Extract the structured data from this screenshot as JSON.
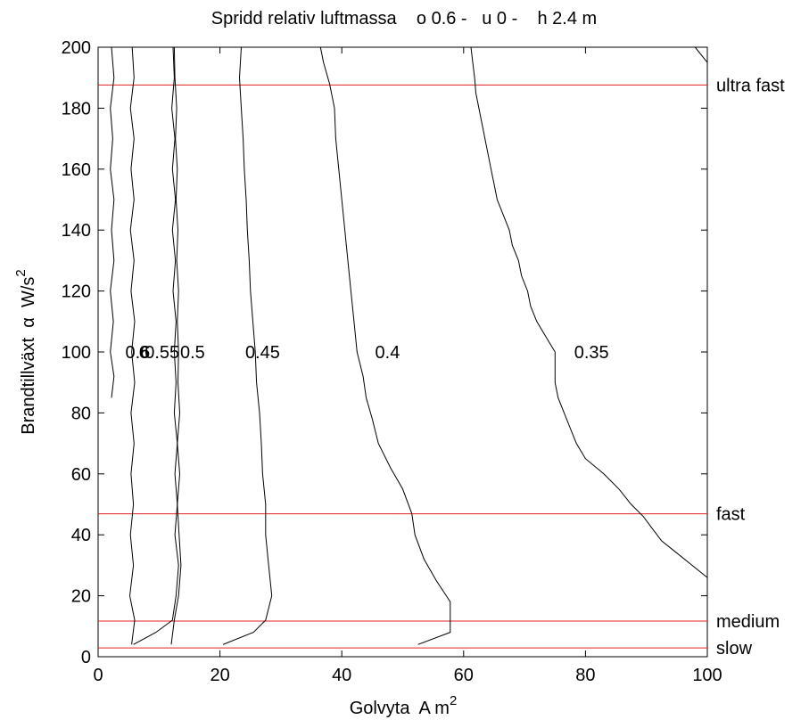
{
  "chart_data": {
    "type": "line",
    "title": "Spridd relativ luftmassa    o 0.6 -   u 0 -    h 2.4 m",
    "xlabel": {
      "text": "Golvyta  A m",
      "sup": "2"
    },
    "ylabel": {
      "text": "Brandtillväxt  α  W/s",
      "sup": "2"
    },
    "xlim": [
      0,
      100
    ],
    "ylim": [
      0,
      200
    ],
    "xticks": [
      0,
      20,
      40,
      60,
      80,
      100
    ],
    "yticks": [
      0,
      20,
      40,
      60,
      80,
      100,
      120,
      140,
      160,
      180,
      200
    ],
    "grid": false,
    "contours": [
      {
        "name": "0.6",
        "label_at": [
          6.5,
          100
        ],
        "points": [
          [
            2.2,
            200
          ],
          [
            2.6,
            190
          ],
          [
            2.0,
            180
          ],
          [
            2.4,
            170
          ],
          [
            2.0,
            160
          ],
          [
            2.6,
            150
          ],
          [
            2.2,
            140
          ],
          [
            2.6,
            130
          ],
          [
            2.0,
            120
          ],
          [
            2.5,
            110
          ],
          [
            2.0,
            100
          ],
          [
            2.6,
            92
          ],
          [
            2.2,
            85
          ]
        ]
      },
      {
        "name": "6",
        "label_at": [
          7.5,
          100
        ],
        "points": [
          [
            5.5,
            4
          ],
          [
            6.0,
            12
          ],
          [
            5.2,
            20
          ],
          [
            5.8,
            30
          ],
          [
            5.3,
            40
          ],
          [
            5.8,
            50
          ],
          [
            5.4,
            60
          ],
          [
            5.9,
            70
          ],
          [
            5.4,
            80
          ],
          [
            6.0,
            90
          ],
          [
            5.5,
            100
          ],
          [
            6.0,
            110
          ],
          [
            5.4,
            120
          ],
          [
            5.9,
            130
          ],
          [
            5.3,
            140
          ],
          [
            5.9,
            150
          ],
          [
            5.4,
            160
          ],
          [
            5.9,
            170
          ],
          [
            5.3,
            180
          ],
          [
            5.9,
            190
          ],
          [
            5.6,
            200
          ]
        ]
      },
      {
        "name": "0.55",
        "label_at": [
          10.5,
          100
        ],
        "points": [
          [
            5.8,
            4
          ],
          [
            9.5,
            8
          ],
          [
            12.2,
            12
          ],
          [
            12.8,
            20
          ],
          [
            13.2,
            30
          ],
          [
            12.6,
            40
          ],
          [
            13.0,
            50
          ],
          [
            12.6,
            60
          ],
          [
            13.0,
            70
          ],
          [
            12.5,
            80
          ],
          [
            12.8,
            90
          ],
          [
            12.5,
            100
          ],
          [
            12.8,
            110
          ],
          [
            12.3,
            120
          ],
          [
            12.7,
            130
          ],
          [
            12.2,
            140
          ],
          [
            12.7,
            150
          ],
          [
            12.2,
            160
          ],
          [
            12.6,
            170
          ],
          [
            12.1,
            180
          ],
          [
            12.5,
            190
          ],
          [
            12.3,
            200
          ]
        ]
      },
      {
        "name": "0.5",
        "label_at": [
          15.5,
          100
        ],
        "points": [
          [
            12.0,
            4
          ],
          [
            12.5,
            12
          ],
          [
            13.2,
            20
          ],
          [
            13.6,
            30
          ],
          [
            13.3,
            40
          ],
          [
            13.0,
            50
          ],
          [
            13.4,
            60
          ],
          [
            13.0,
            70
          ],
          [
            13.4,
            80
          ],
          [
            13.1,
            90
          ],
          [
            13.2,
            100
          ],
          [
            13.0,
            110
          ],
          [
            13.2,
            120
          ],
          [
            12.9,
            130
          ],
          [
            13.1,
            140
          ],
          [
            12.8,
            150
          ],
          [
            13.0,
            160
          ],
          [
            12.7,
            170
          ],
          [
            12.9,
            180
          ],
          [
            12.6,
            190
          ],
          [
            12.5,
            200
          ]
        ]
      },
      {
        "name": "0.45",
        "label_at": [
          27.0,
          100
        ],
        "points": [
          [
            20.5,
            4
          ],
          [
            25.5,
            8
          ],
          [
            27.5,
            12
          ],
          [
            28.5,
            20
          ],
          [
            28.0,
            30
          ],
          [
            27.5,
            40
          ],
          [
            27.5,
            50
          ],
          [
            27.0,
            60
          ],
          [
            26.8,
            70
          ],
          [
            26.5,
            80
          ],
          [
            26.0,
            90
          ],
          [
            25.8,
            100
          ],
          [
            25.4,
            110
          ],
          [
            25.0,
            120
          ],
          [
            24.8,
            130
          ],
          [
            24.5,
            140
          ],
          [
            24.3,
            150
          ],
          [
            24.0,
            160
          ],
          [
            23.8,
            170
          ],
          [
            23.5,
            180
          ],
          [
            23.2,
            190
          ],
          [
            23.5,
            200
          ]
        ]
      },
      {
        "name": "0.4",
        "label_at": [
          47.5,
          100
        ],
        "points": [
          [
            52.5,
            4
          ],
          [
            57.8,
            8
          ],
          [
            57.8,
            18
          ],
          [
            55.5,
            25
          ],
          [
            53.5,
            32
          ],
          [
            52.0,
            40
          ],
          [
            51.5,
            47
          ],
          [
            50.0,
            55
          ],
          [
            48.0,
            62
          ],
          [
            46.0,
            70
          ],
          [
            45.0,
            78
          ],
          [
            44.0,
            85
          ],
          [
            43.5,
            92
          ],
          [
            42.5,
            100
          ],
          [
            42.0,
            110
          ],
          [
            41.5,
            120
          ],
          [
            41.0,
            130
          ],
          [
            40.5,
            140
          ],
          [
            40.0,
            150
          ],
          [
            39.5,
            160
          ],
          [
            39.0,
            170
          ],
          [
            38.8,
            180
          ],
          [
            38.0,
            188
          ],
          [
            37.0,
            195
          ],
          [
            36.5,
            200
          ]
        ]
      },
      {
        "name": "0.35",
        "label_at": [
          81.0,
          100
        ],
        "points": [
          [
            100,
            26
          ],
          [
            97.5,
            30
          ],
          [
            95.0,
            34
          ],
          [
            92.5,
            38
          ],
          [
            91.0,
            42
          ],
          [
            89.5,
            46
          ],
          [
            87.5,
            50
          ],
          [
            85.5,
            55
          ],
          [
            83.0,
            60
          ],
          [
            80.0,
            65
          ],
          [
            78.5,
            70
          ],
          [
            77.5,
            75
          ],
          [
            76.5,
            80
          ],
          [
            75.5,
            85
          ],
          [
            75.0,
            90
          ],
          [
            75.0,
            95
          ],
          [
            75.0,
            100
          ],
          [
            73.5,
            105
          ],
          [
            72.0,
            110
          ],
          [
            71.0,
            115
          ],
          [
            70.5,
            120
          ],
          [
            69.5,
            125
          ],
          [
            69.0,
            130
          ],
          [
            68.0,
            135
          ],
          [
            67.5,
            140
          ],
          [
            66.5,
            145
          ],
          [
            65.5,
            150
          ],
          [
            65.0,
            155
          ],
          [
            64.5,
            160
          ],
          [
            64.0,
            165
          ],
          [
            63.5,
            170
          ],
          [
            63.0,
            175
          ],
          [
            62.5,
            180
          ],
          [
            62.0,
            185
          ],
          [
            61.8,
            190
          ],
          [
            61.5,
            195
          ],
          [
            61.2,
            200
          ]
        ]
      },
      {
        "name": "",
        "label_at": null,
        "points": [
          [
            98.0,
            200
          ],
          [
            100,
            195
          ]
        ]
      }
    ],
    "reference_lines": [
      {
        "name": "ultra fast",
        "y": 187.6,
        "color": "#e02020"
      },
      {
        "name": "fast",
        "y": 46.9,
        "color": "#e02020"
      },
      {
        "name": "medium",
        "y": 11.7,
        "color": "#e02020"
      },
      {
        "name": "slow",
        "y": 2.9,
        "color": "#e02020"
      }
    ],
    "colors": {
      "contour": "#000000",
      "reference": "#e02020",
      "axis": "#000000"
    }
  }
}
